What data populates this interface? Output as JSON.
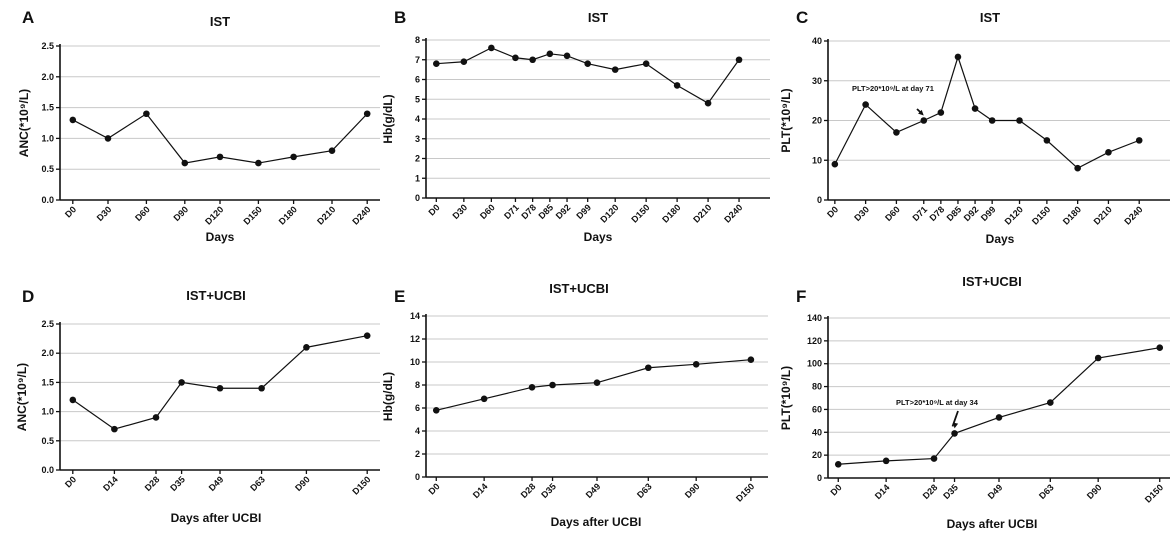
{
  "chart_data": [
    {
      "panel": "A",
      "title": "IST",
      "type": "line",
      "xlabel": "Days",
      "ylabel": "ANC(*10⁹/L)",
      "categories": [
        "D0",
        "D30",
        "D60",
        "D90",
        "D120",
        "D150",
        "D180",
        "D210",
        "D240"
      ],
      "values": [
        1.3,
        1.0,
        1.4,
        0.6,
        0.7,
        0.6,
        0.7,
        0.8,
        1.4
      ],
      "ylim": [
        0,
        2.5
      ],
      "yticks": [
        "0.0",
        "0.5",
        "1.0",
        "1.5",
        "2.0",
        "2.5"
      ],
      "grid": true
    },
    {
      "panel": "B",
      "title": "IST",
      "type": "line",
      "xlabel": "Days",
      "ylabel": "Hb(g/dL)",
      "categories": [
        "D0",
        "D30",
        "D60",
        "D71",
        "D78",
        "D85",
        "D92",
        "D99",
        "D120",
        "D150",
        "D180",
        "D210",
        "D240"
      ],
      "values": [
        6.8,
        6.9,
        7.6,
        7.1,
        7.0,
        7.3,
        7.2,
        6.8,
        6.5,
        6.8,
        5.7,
        4.8,
        7.0
      ],
      "ylim": [
        0,
        8
      ],
      "yticks": [
        "0",
        "1",
        "2",
        "3",
        "4",
        "5",
        "6",
        "7",
        "8"
      ],
      "grid": true
    },
    {
      "panel": "C",
      "title": "IST",
      "type": "line",
      "xlabel": "Days",
      "ylabel": "PLT(*10⁹/L)",
      "categories": [
        "D0",
        "D30",
        "D60",
        "D71",
        "D78",
        "D85",
        "D92",
        "D99",
        "D120",
        "D150",
        "D180",
        "D210",
        "D240"
      ],
      "values": [
        9,
        24,
        17,
        20,
        22,
        36,
        23,
        20,
        20,
        15,
        8,
        12,
        15
      ],
      "ylim": [
        0,
        40
      ],
      "yticks": [
        "0",
        "10",
        "20",
        "30",
        "40"
      ],
      "grid": true,
      "annotation": {
        "text": "PLT>20*10⁹/L at day 71",
        "points_to": "D71"
      }
    },
    {
      "panel": "D",
      "title": "IST+UCBI",
      "type": "line",
      "xlabel": "Days after UCBI",
      "ylabel": "ANC(*10⁹/L)",
      "categories": [
        "D0",
        "D14",
        "D28",
        "D35",
        "D49",
        "D63",
        "D90",
        "D150"
      ],
      "values": [
        1.2,
        0.7,
        0.9,
        1.5,
        1.4,
        1.4,
        2.1,
        2.3
      ],
      "ylim": [
        0,
        2.5
      ],
      "yticks": [
        "0.0",
        "0.5",
        "1.0",
        "1.5",
        "2.0",
        "2.5"
      ],
      "grid": true
    },
    {
      "panel": "E",
      "title": "IST+UCBI",
      "type": "line",
      "xlabel": "Days after UCBI",
      "ylabel": "Hb(g/dL)",
      "categories": [
        "D0",
        "D14",
        "D28",
        "D35",
        "D49",
        "D63",
        "D90",
        "D150"
      ],
      "values": [
        5.8,
        6.8,
        7.8,
        8.0,
        8.2,
        9.5,
        9.8,
        10.2
      ],
      "ylim": [
        0,
        14
      ],
      "yticks": [
        "0",
        "2",
        "4",
        "6",
        "8",
        "10",
        "12",
        "14"
      ],
      "grid": true
    },
    {
      "panel": "F",
      "title": "IST+UCBI",
      "type": "line",
      "xlabel": "Days after UCBI",
      "ylabel": "PLT(*10⁹/L)",
      "categories": [
        "D0",
        "D14",
        "D28",
        "D35",
        "D49",
        "D63",
        "D90",
        "D150"
      ],
      "values": [
        12,
        15,
        17,
        39,
        53,
        66,
        105,
        114
      ],
      "ylim": [
        0,
        140
      ],
      "yticks": [
        "0",
        "20",
        "40",
        "60",
        "80",
        "100",
        "120",
        "140"
      ],
      "grid": true,
      "annotation": {
        "text": "PLT>20*10⁹/L at day 34",
        "points_to": "D35"
      }
    }
  ]
}
